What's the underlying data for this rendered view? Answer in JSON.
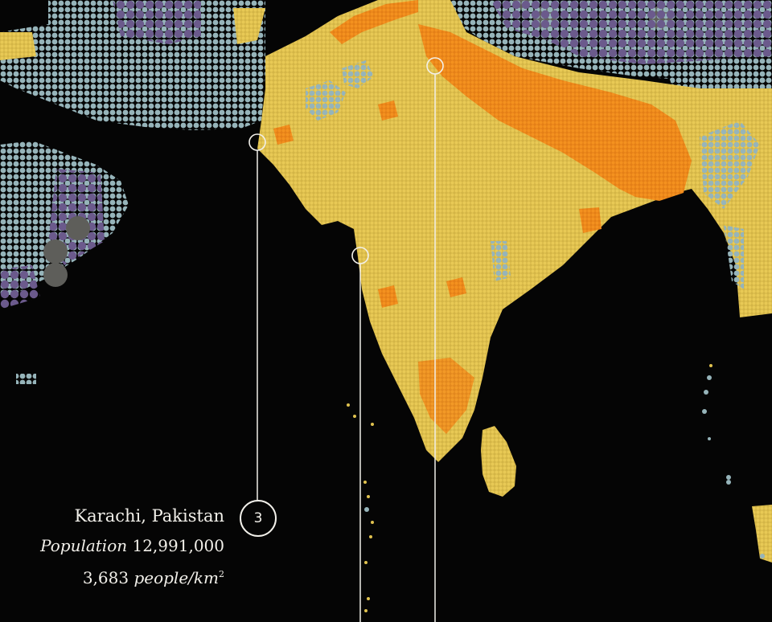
{
  "palette": {
    "background": "#050505",
    "low_density": "#96b4ba",
    "medium_density": "#e0c24f",
    "high_density": "#ef8c1b",
    "very_high_density": "#f07f10",
    "other_density": "#6b5a8c",
    "largest_symbol": "#5e5e5a",
    "leader_line": "#f2f0ea"
  },
  "callout": {
    "number": "3",
    "city": "Karachi, Pakistan",
    "population_label": "Population",
    "population_value": "12,991,000",
    "density_value": "3,683",
    "density_unit": "people/km",
    "density_unit_power": "2"
  },
  "markers": [
    {
      "name": "karachi-marker",
      "icon": "ring-icon"
    },
    {
      "name": "mumbai-marker",
      "icon": "ring-icon"
    },
    {
      "name": "delhi-marker",
      "icon": "ring-icon"
    }
  ]
}
